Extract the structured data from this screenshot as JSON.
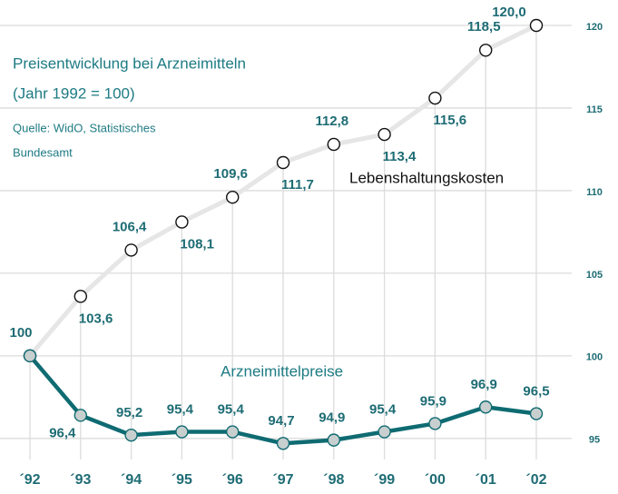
{
  "chart_data": {
    "type": "line",
    "title": "Preisentwicklung bei Arzneimitteln",
    "subtitle": "(Jahr 1992 = 100)",
    "source": [
      "Quelle: WidO, Statistisches",
      "Bundesamt"
    ],
    "categories": [
      "´92",
      "´93",
      "´94",
      "´95",
      "´96",
      "´97",
      "´98",
      "´99",
      "´00",
      "´01",
      "´02"
    ],
    "series": [
      {
        "name": "Lebenshaltungskosten",
        "color": "#e6e6e6",
        "label_color": "#111111",
        "values": [
          100,
          103.6,
          106.4,
          108.1,
          109.6,
          111.7,
          112.8,
          113.4,
          115.6,
          118.5,
          120.0
        ],
        "value_labels": [
          "100",
          "103,6",
          "106,4",
          "108,1",
          "109,6",
          "111,7",
          "112,8",
          "113,4",
          "115,6",
          "118,5",
          "120,0"
        ]
      },
      {
        "name": "Arzneimittelpreise",
        "color": "#0f6b72",
        "label_color": "#1e7b84",
        "values": [
          100,
          96.4,
          95.2,
          95.4,
          95.4,
          94.7,
          94.9,
          95.4,
          95.9,
          96.9,
          96.5
        ],
        "value_labels": [
          null,
          "96,4",
          "95,2",
          "95,4",
          "95,4",
          "94,7",
          "94,9",
          "95,4",
          "95,9",
          "96,9",
          "96,5"
        ]
      }
    ],
    "ylim": [
      94,
      121.5
    ],
    "yticks": [
      95,
      100,
      105,
      110,
      115,
      120
    ],
    "grid": true
  }
}
